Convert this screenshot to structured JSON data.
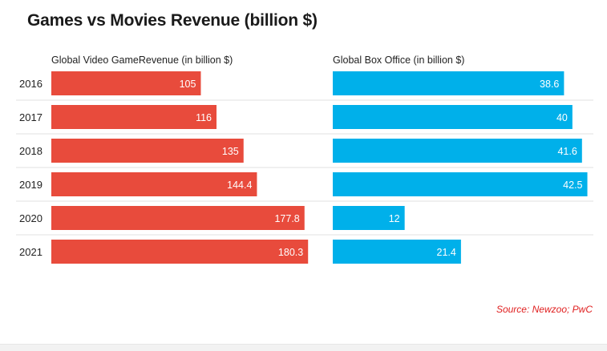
{
  "header": {
    "title": "Games vs Movies Revenue (billion $)"
  },
  "footer": {
    "source": "Source: Newzoo; PwC"
  },
  "colors": {
    "games": "#e84b3c",
    "movies": "#00b0ea",
    "source_text": "#e02020",
    "grid": "#e2e2e2"
  },
  "chart_data": {
    "type": "bar",
    "orientation": "horizontal",
    "title": "Games vs Movies Revenue (billion $)",
    "categories": [
      "2016",
      "2017",
      "2018",
      "2019",
      "2020",
      "2021"
    ],
    "panels": [
      {
        "name": "Global Video GameRevenue (in billion $)",
        "values": [
          105,
          116,
          135,
          144.4,
          177.8,
          180.3
        ],
        "value_labels": [
          "105",
          "116",
          "135",
          "144.4",
          "177.8",
          "180.3"
        ],
        "color": "#e84b3c",
        "xlim": [
          0,
          183
        ]
      },
      {
        "name": "Global Box Office (in billion $)",
        "values": [
          38.6,
          40,
          41.6,
          42.5,
          12,
          21.4
        ],
        "value_labels": [
          "38.6",
          "40",
          "41.6",
          "42.5",
          "12",
          "21.4"
        ],
        "color": "#00b0ea",
        "xlim": [
          0,
          43.5
        ]
      }
    ],
    "data_labels": "inside-end",
    "grid": "row separators",
    "source": "Source: Newzoo; PwC"
  }
}
